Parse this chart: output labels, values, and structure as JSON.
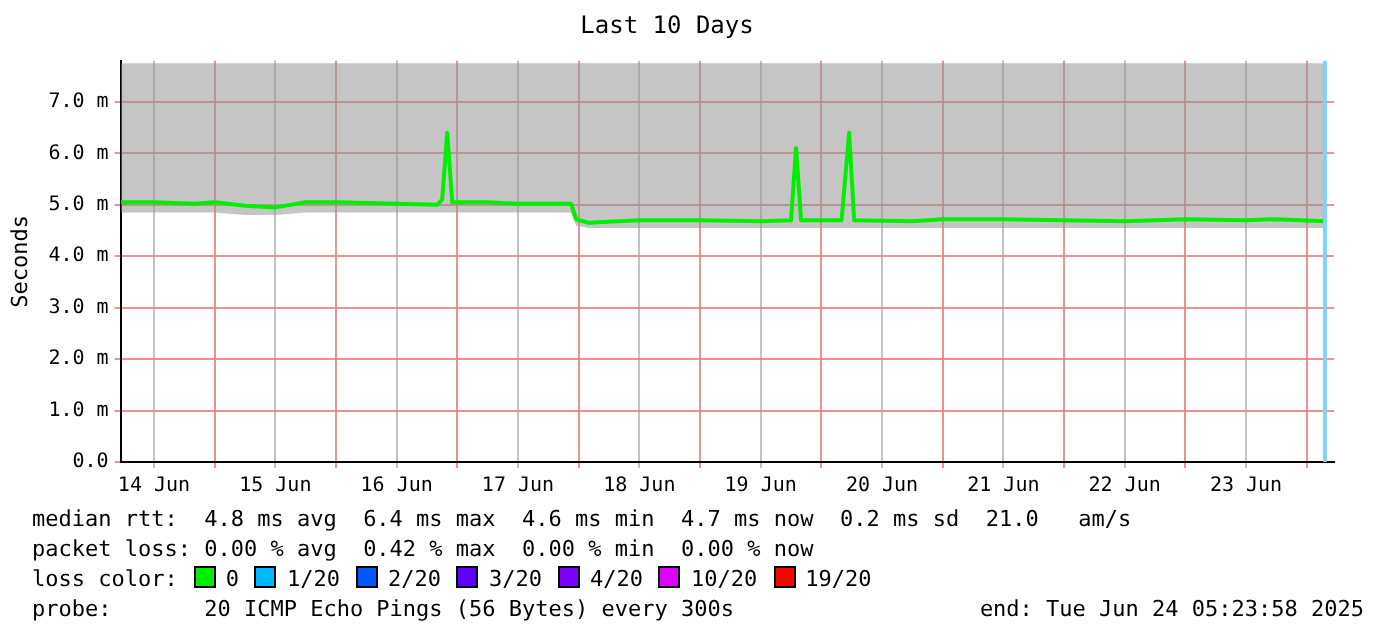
{
  "chart_data": {
    "type": "line",
    "title": "Last 10 Days",
    "ylabel": "Seconds",
    "xlim": [
      "2025-06-14T05:24",
      "2025-06-24T05:24"
    ],
    "xticks": [
      {
        "value": "2025-06-14T12:00",
        "label": "14 Jun"
      },
      {
        "value": "2025-06-15T00:00",
        "label": null
      },
      {
        "value": "2025-06-15T12:00",
        "label": "15 Jun"
      },
      {
        "value": "2025-06-16T00:00",
        "label": null
      },
      {
        "value": "2025-06-16T12:00",
        "label": "16 Jun"
      },
      {
        "value": "2025-06-17T00:00",
        "label": null
      },
      {
        "value": "2025-06-17T12:00",
        "label": "17 Jun"
      },
      {
        "value": "2025-06-18T00:00",
        "label": null
      },
      {
        "value": "2025-06-18T12:00",
        "label": "18 Jun"
      },
      {
        "value": "2025-06-19T00:00",
        "label": null
      },
      {
        "value": "2025-06-19T12:00",
        "label": "19 Jun"
      },
      {
        "value": "2025-06-20T00:00",
        "label": null
      },
      {
        "value": "2025-06-20T12:00",
        "label": "20 Jun"
      },
      {
        "value": "2025-06-21T00:00",
        "label": null
      },
      {
        "value": "2025-06-21T12:00",
        "label": "21 Jun"
      },
      {
        "value": "2025-06-22T00:00",
        "label": null
      },
      {
        "value": "2025-06-22T12:00",
        "label": "22 Jun"
      },
      {
        "value": "2025-06-23T00:00",
        "label": null
      },
      {
        "value": "2025-06-23T12:00",
        "label": "23 Jun"
      },
      {
        "value": "2025-06-24T00:00",
        "label": null
      }
    ],
    "ylim": [
      0,
      7.8
    ],
    "yticks": [
      {
        "value": 0,
        "label": "0.0"
      },
      {
        "value": 1,
        "label": "1.0 m"
      },
      {
        "value": 2,
        "label": "2.0 m"
      },
      {
        "value": 3,
        "label": "3.0 m"
      },
      {
        "value": 4,
        "label": "4.0 m"
      },
      {
        "value": 5,
        "label": "5.0 m"
      },
      {
        "value": 6,
        "label": "6.0 m"
      },
      {
        "value": 7,
        "label": "7.0 m"
      }
    ],
    "grid": true,
    "legend": "bottom",
    "legend_title": "loss color:",
    "marker": "none",
    "line_style": "solid",
    "x": [
      "2025-06-14T05:30",
      "2025-06-14T12:00",
      "2025-06-14T20:00",
      "2025-06-15T00:00",
      "2025-06-15T06:00",
      "2025-06-15T12:00",
      "2025-06-15T18:00",
      "2025-06-16T00:00",
      "2025-06-16T12:00",
      "2025-06-16T20:00",
      "2025-06-16T21:00",
      "2025-06-16T22:00",
      "2025-06-16T23:00",
      "2025-06-17T06:00",
      "2025-06-17T12:00",
      "2025-06-17T22:30",
      "2025-06-17T23:30",
      "2025-06-18T02:00",
      "2025-06-18T12:00",
      "2025-06-19T00:00",
      "2025-06-19T12:00",
      "2025-06-19T18:00",
      "2025-06-19T19:00",
      "2025-06-19T20:00",
      "2025-06-20T04:00",
      "2025-06-20T05:30",
      "2025-06-20T06:30",
      "2025-06-20T18:00",
      "2025-06-21T00:00",
      "2025-06-21T12:00",
      "2025-06-22T00:00",
      "2025-06-22T12:00",
      "2025-06-23T00:00",
      "2025-06-23T12:00",
      "2025-06-23T18:00",
      "2025-06-24T03:30"
    ],
    "series": [
      {
        "name": "0",
        "color": "#00ee00",
        "values": [
          5.05,
          5.05,
          5.02,
          5.05,
          4.98,
          4.95,
          5.05,
          5.05,
          5.02,
          5.0,
          5.1,
          6.4,
          5.05,
          5.05,
          5.02,
          5.02,
          4.72,
          4.65,
          4.7,
          4.7,
          4.68,
          4.7,
          6.1,
          4.7,
          4.7,
          6.4,
          4.7,
          4.68,
          4.72,
          4.72,
          4.7,
          4.68,
          4.72,
          4.7,
          4.72,
          4.68
        ],
        "lower": [
          4.85,
          4.85,
          4.85,
          4.85,
          4.8,
          4.8,
          4.85,
          4.85,
          4.85,
          4.85,
          4.85,
          4.85,
          4.85,
          4.85,
          4.85,
          4.85,
          4.6,
          4.55,
          4.55,
          4.55,
          4.55,
          4.55,
          4.55,
          4.55,
          4.55,
          4.55,
          4.55,
          4.55,
          4.55,
          4.55,
          4.55,
          4.55,
          4.55,
          4.55,
          4.55,
          4.55
        ],
        "upper": [
          7.75,
          7.75,
          7.75,
          7.75,
          7.75,
          7.75,
          7.75,
          7.75,
          7.75,
          7.75,
          7.75,
          7.75,
          7.75,
          7.75,
          7.75,
          7.75,
          7.75,
          7.75,
          7.75,
          7.75,
          7.75,
          7.75,
          7.75,
          7.75,
          7.75,
          7.75,
          7.75,
          7.75,
          7.75,
          7.75,
          7.75,
          7.75,
          7.75,
          7.75,
          7.75,
          7.75
        ]
      },
      {
        "name": "1/20",
        "color": "#00b8ff",
        "values": [
          null,
          null,
          null,
          null,
          null,
          null,
          null,
          null,
          null,
          null,
          null,
          null,
          null,
          null,
          null,
          null,
          null,
          null,
          null,
          null,
          null,
          null,
          null,
          null,
          null,
          null,
          null,
          null,
          null,
          null,
          null,
          null,
          null,
          null,
          null,
          null
        ]
      },
      {
        "name": "2/20",
        "color": "#0059ff",
        "values": [
          null,
          null,
          null,
          null,
          null,
          null,
          null,
          null,
          null,
          null,
          null,
          null,
          null,
          null,
          null,
          null,
          null,
          null,
          null,
          null,
          null,
          null,
          null,
          null,
          null,
          null,
          null,
          null,
          null,
          null,
          null,
          null,
          null,
          null,
          null,
          null
        ]
      },
      {
        "name": "3/20",
        "color": "#5e00ff",
        "values": [
          null,
          null,
          null,
          null,
          null,
          null,
          null,
          null,
          null,
          null,
          null,
          null,
          null,
          null,
          null,
          null,
          null,
          null,
          null,
          null,
          null,
          null,
          null,
          null,
          null,
          null,
          null,
          null,
          null,
          null,
          null,
          null,
          null,
          null,
          null,
          null
        ]
      },
      {
        "name": "4/20",
        "color": "#7e00ff",
        "values": [
          null,
          null,
          null,
          null,
          null,
          null,
          null,
          null,
          null,
          null,
          null,
          null,
          null,
          null,
          null,
          null,
          null,
          null,
          null,
          null,
          null,
          null,
          null,
          null,
          null,
          null,
          null,
          null,
          null,
          null,
          null,
          null,
          null,
          null,
          null,
          null
        ]
      },
      {
        "name": "10/20",
        "color": "#dd00ff",
        "values": [
          null,
          null,
          null,
          null,
          null,
          null,
          null,
          null,
          null,
          null,
          null,
          null,
          null,
          null,
          null,
          null,
          null,
          null,
          null,
          null,
          null,
          null,
          null,
          null,
          null,
          null,
          null,
          null,
          null,
          null,
          null,
          null,
          null,
          null,
          null,
          null
        ]
      },
      {
        "name": "19/20",
        "color": "#ff0000",
        "values": [
          null,
          null,
          null,
          null,
          null,
          null,
          null,
          null,
          null,
          null,
          null,
          null,
          null,
          null,
          null,
          null,
          null,
          null,
          null,
          null,
          null,
          null,
          null,
          null,
          null,
          null,
          null,
          null,
          null,
          null,
          null,
          null,
          null,
          null,
          null,
          null
        ]
      }
    ],
    "ref_lines": [
      {
        "axis": "x",
        "value": "2025-06-24T03:36",
        "label": null,
        "color": "#80d4f8"
      }
    ],
    "annotations": [
      "median rtt:  4.8 ms avg  6.4 ms max  4.6 ms min  4.7 ms now  0.2 ms sd  21.0   am/s",
      "packet loss: 0.00 % avg  0.42 % max  0.00 % min  0.00 % now",
      "probe:       20 ICMP Echo Pings (56 Bytes) every 300s",
      "end: Tue Jun 24 05:23:58 2025"
    ]
  }
}
